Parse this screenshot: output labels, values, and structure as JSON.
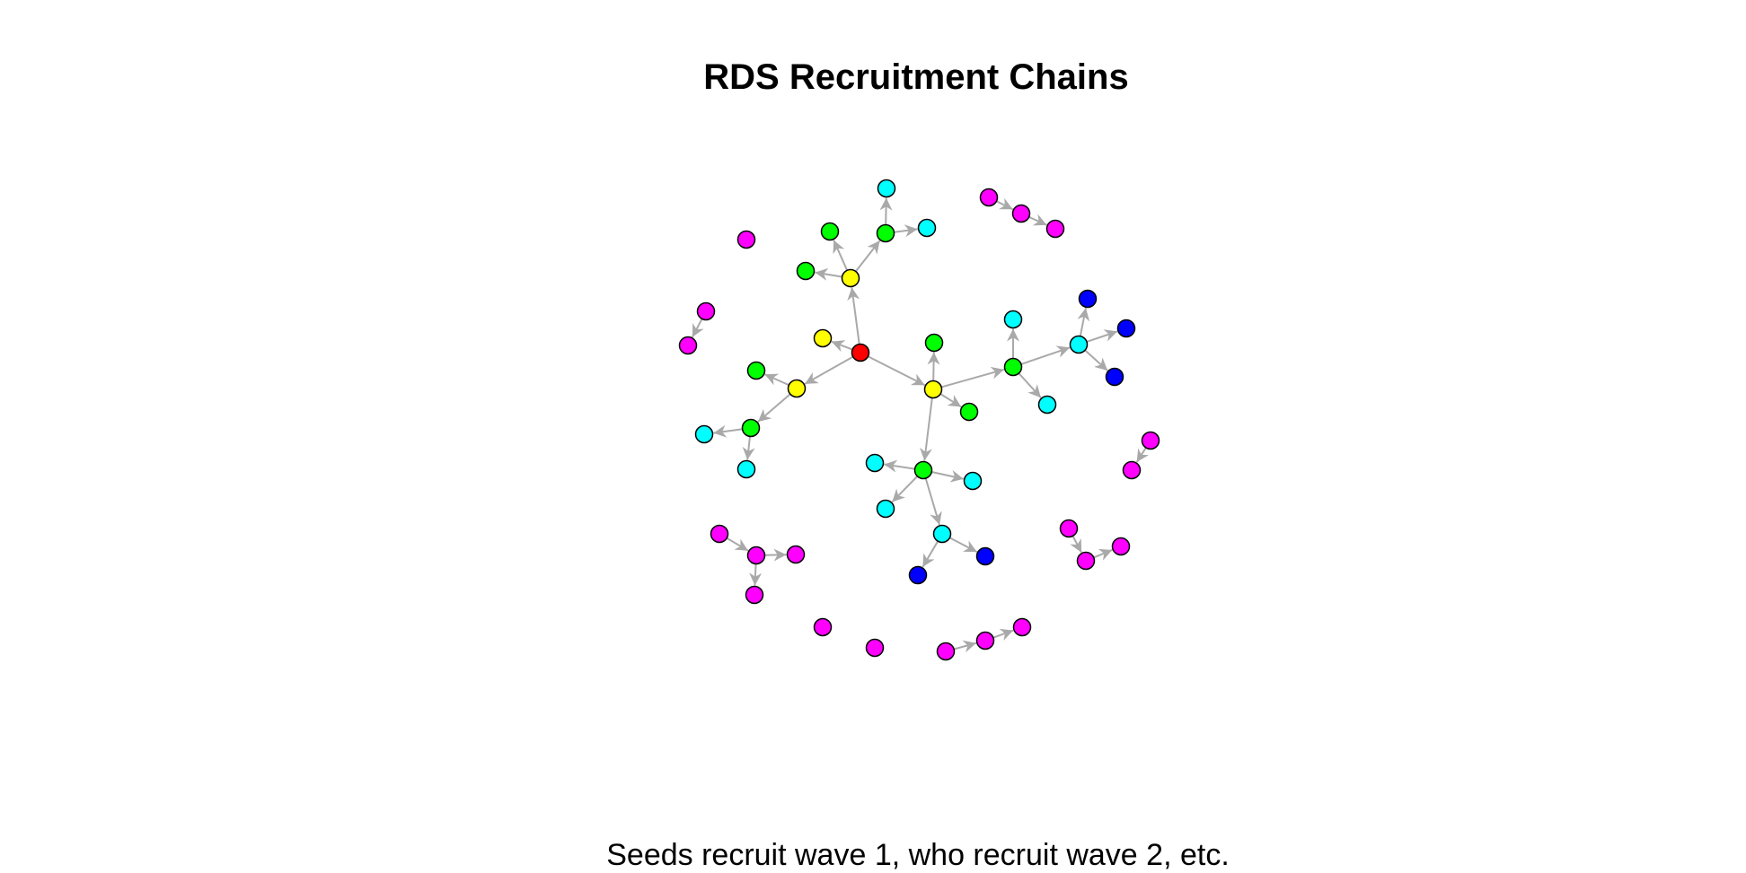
{
  "title": "RDS Recruitment Chains",
  "caption": "Seeds recruit wave 1, who recruit wave 2, etc.",
  "wave_colors": {
    "seed": "#ff0000",
    "wave1": "#ffff00",
    "wave2": "#00ff00",
    "wave3": "#00ffff",
    "wave4": "#0000ff",
    "isolated": "#ff00ff"
  },
  "edge_color": "#a9a9a9",
  "node_stroke": "#000000",
  "nodes": [
    {
      "id": "n1",
      "wave": "seed"
    },
    {
      "id": "n2",
      "wave": "wave1"
    },
    {
      "id": "n3",
      "wave": "wave1"
    },
    {
      "id": "n4",
      "wave": "wave1"
    },
    {
      "id": "n5",
      "wave": "wave1"
    },
    {
      "id": "n6",
      "wave": "wave2"
    },
    {
      "id": "n7",
      "wave": "wave2"
    },
    {
      "id": "n8",
      "wave": "wave2"
    },
    {
      "id": "n9",
      "wave": "wave3"
    },
    {
      "id": "n10",
      "wave": "wave3"
    },
    {
      "id": "n11",
      "wave": "wave2"
    },
    {
      "id": "n12",
      "wave": "wave2"
    },
    {
      "id": "n13",
      "wave": "wave3"
    },
    {
      "id": "n14",
      "wave": "wave3"
    },
    {
      "id": "n15",
      "wave": "wave2"
    },
    {
      "id": "n16",
      "wave": "wave2"
    },
    {
      "id": "n17",
      "wave": "wave2"
    },
    {
      "id": "n18",
      "wave": "wave3"
    },
    {
      "id": "n19",
      "wave": "wave3"
    },
    {
      "id": "n20",
      "wave": "wave3"
    },
    {
      "id": "n21",
      "wave": "wave4"
    },
    {
      "id": "n22",
      "wave": "wave4"
    },
    {
      "id": "n23",
      "wave": "wave4"
    },
    {
      "id": "n24",
      "wave": "wave2"
    },
    {
      "id": "n25",
      "wave": "wave3"
    },
    {
      "id": "n26",
      "wave": "wave3"
    },
    {
      "id": "n27",
      "wave": "wave3"
    },
    {
      "id": "n28",
      "wave": "wave3"
    },
    {
      "id": "n29",
      "wave": "wave3"
    },
    {
      "id": "n30",
      "wave": "wave4"
    },
    {
      "id": "n31",
      "wave": "wave4"
    },
    {
      "id": "m1",
      "wave": "isolated"
    },
    {
      "id": "m2",
      "wave": "isolated"
    },
    {
      "id": "m3",
      "wave": "isolated"
    },
    {
      "id": "m4",
      "wave": "isolated"
    },
    {
      "id": "m5",
      "wave": "isolated"
    },
    {
      "id": "m6",
      "wave": "isolated"
    },
    {
      "id": "m7",
      "wave": "isolated"
    },
    {
      "id": "m8",
      "wave": "isolated"
    },
    {
      "id": "m9",
      "wave": "isolated"
    },
    {
      "id": "m10",
      "wave": "isolated"
    },
    {
      "id": "m11",
      "wave": "isolated"
    },
    {
      "id": "m12",
      "wave": "isolated"
    },
    {
      "id": "m13",
      "wave": "isolated"
    },
    {
      "id": "m14",
      "wave": "isolated"
    },
    {
      "id": "m15",
      "wave": "isolated"
    },
    {
      "id": "m16",
      "wave": "isolated"
    },
    {
      "id": "m17",
      "wave": "isolated"
    },
    {
      "id": "m18",
      "wave": "isolated"
    },
    {
      "id": "m19",
      "wave": "isolated"
    },
    {
      "id": "m20",
      "wave": "isolated"
    },
    {
      "id": "m21",
      "wave": "isolated"
    }
  ],
  "edges": [
    [
      "n1",
      "n3"
    ],
    [
      "n1",
      "n4"
    ],
    [
      "n1",
      "n5"
    ],
    [
      "n1",
      "n2"
    ],
    [
      "n3",
      "n6"
    ],
    [
      "n3",
      "n7"
    ],
    [
      "n3",
      "n8"
    ],
    [
      "n8",
      "n9"
    ],
    [
      "n8",
      "n10"
    ],
    [
      "n4",
      "n11"
    ],
    [
      "n4",
      "n12"
    ],
    [
      "n12",
      "n13"
    ],
    [
      "n12",
      "n14"
    ],
    [
      "n5",
      "n15"
    ],
    [
      "n5",
      "n16"
    ],
    [
      "n5",
      "n17"
    ],
    [
      "n5",
      "n24"
    ],
    [
      "n17",
      "n18"
    ],
    [
      "n17",
      "n19"
    ],
    [
      "n17",
      "n20"
    ],
    [
      "n20",
      "n21"
    ],
    [
      "n20",
      "n22"
    ],
    [
      "n20",
      "n23"
    ],
    [
      "n24",
      "n25"
    ],
    [
      "n24",
      "n26"
    ],
    [
      "n24",
      "n27"
    ],
    [
      "n24",
      "n28"
    ],
    [
      "n28",
      "n30"
    ],
    [
      "n28",
      "n31"
    ],
    [
      "m2",
      "m3"
    ],
    [
      "m3",
      "m4"
    ],
    [
      "m5",
      "m6"
    ],
    [
      "m7",
      "m8"
    ],
    [
      "m9",
      "m10"
    ],
    [
      "m10",
      "m11"
    ],
    [
      "m10",
      "m12"
    ],
    [
      "m14",
      "m15"
    ],
    [
      "m15",
      "m16"
    ],
    [
      "m18",
      "m19"
    ],
    [
      "m19",
      "m20"
    ]
  ]
}
